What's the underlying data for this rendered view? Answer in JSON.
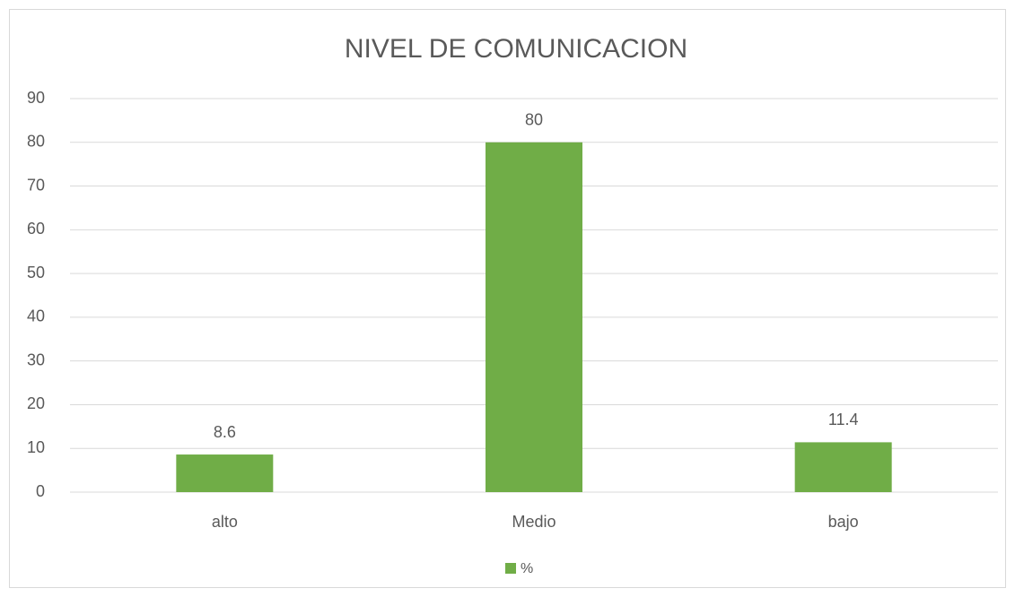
{
  "chart_data": {
    "type": "bar",
    "title": "NIVEL DE COMUNICACION",
    "categories": [
      "alto",
      "Medio",
      "bajo"
    ],
    "series": [
      {
        "name": "%",
        "color": "#70ad47",
        "values": [
          8.6,
          80,
          11.4
        ]
      }
    ],
    "ylim": [
      0,
      90
    ],
    "yticks": [
      0,
      10,
      20,
      30,
      40,
      50,
      60,
      70,
      80,
      90
    ],
    "grid": true,
    "legend": "bottom"
  }
}
